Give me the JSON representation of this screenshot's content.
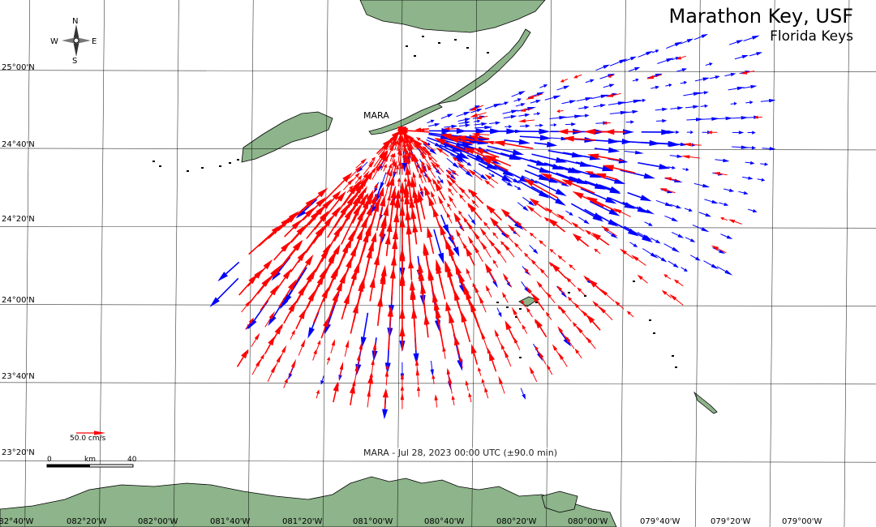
{
  "map": {
    "title": "Marathon Key, USF",
    "subtitle": "Florida Keys",
    "timestamp": "MARA - Jul 28, 2023 00:00 UTC (±90.0 min)",
    "site": {
      "name": "MARA",
      "lat": 24.742,
      "lon": -81.0,
      "color": "#ff0000"
    },
    "bounds": {
      "lon_min": -82.8,
      "lon_max": -78.88,
      "lat_min": 23.05,
      "lat_max": 25.3
    },
    "lat_labels": [
      "23°20'N",
      "23°40'N",
      "24°00'N",
      "24°20'N",
      "24°40'N",
      "25°00'N"
    ],
    "lat_values": [
      23.3333,
      23.6667,
      24.0,
      24.3333,
      24.6667,
      25.0
    ],
    "lon_labels": [
      "082°40'W",
      "082°20'W",
      "082°00'W",
      "081°40'W",
      "081°20'W",
      "081°00'W",
      "080°40'W",
      "080°20'W",
      "080°00'W",
      "079°40'W",
      "079°20'W",
      "079°00'W"
    ],
    "lon_values": [
      -82.6667,
      -82.3333,
      -82.0,
      -81.6667,
      -81.3333,
      -81.0,
      -80.6667,
      -80.3333,
      -80.0,
      -79.6667,
      -79.3333,
      -79.0
    ],
    "reference_vector": {
      "label": "50.0 cm/s",
      "color": "#ff0000"
    },
    "scale_bar": {
      "unit_label": "km",
      "start_label": "0",
      "end_label": "40",
      "km": 40
    },
    "compass": {
      "n": "N",
      "s": "S",
      "e": "E",
      "w": "W"
    },
    "colors": {
      "land": "#8db48a",
      "grid": "#000000",
      "toward": "#ff0000",
      "away": "#0000ff"
    }
  }
}
